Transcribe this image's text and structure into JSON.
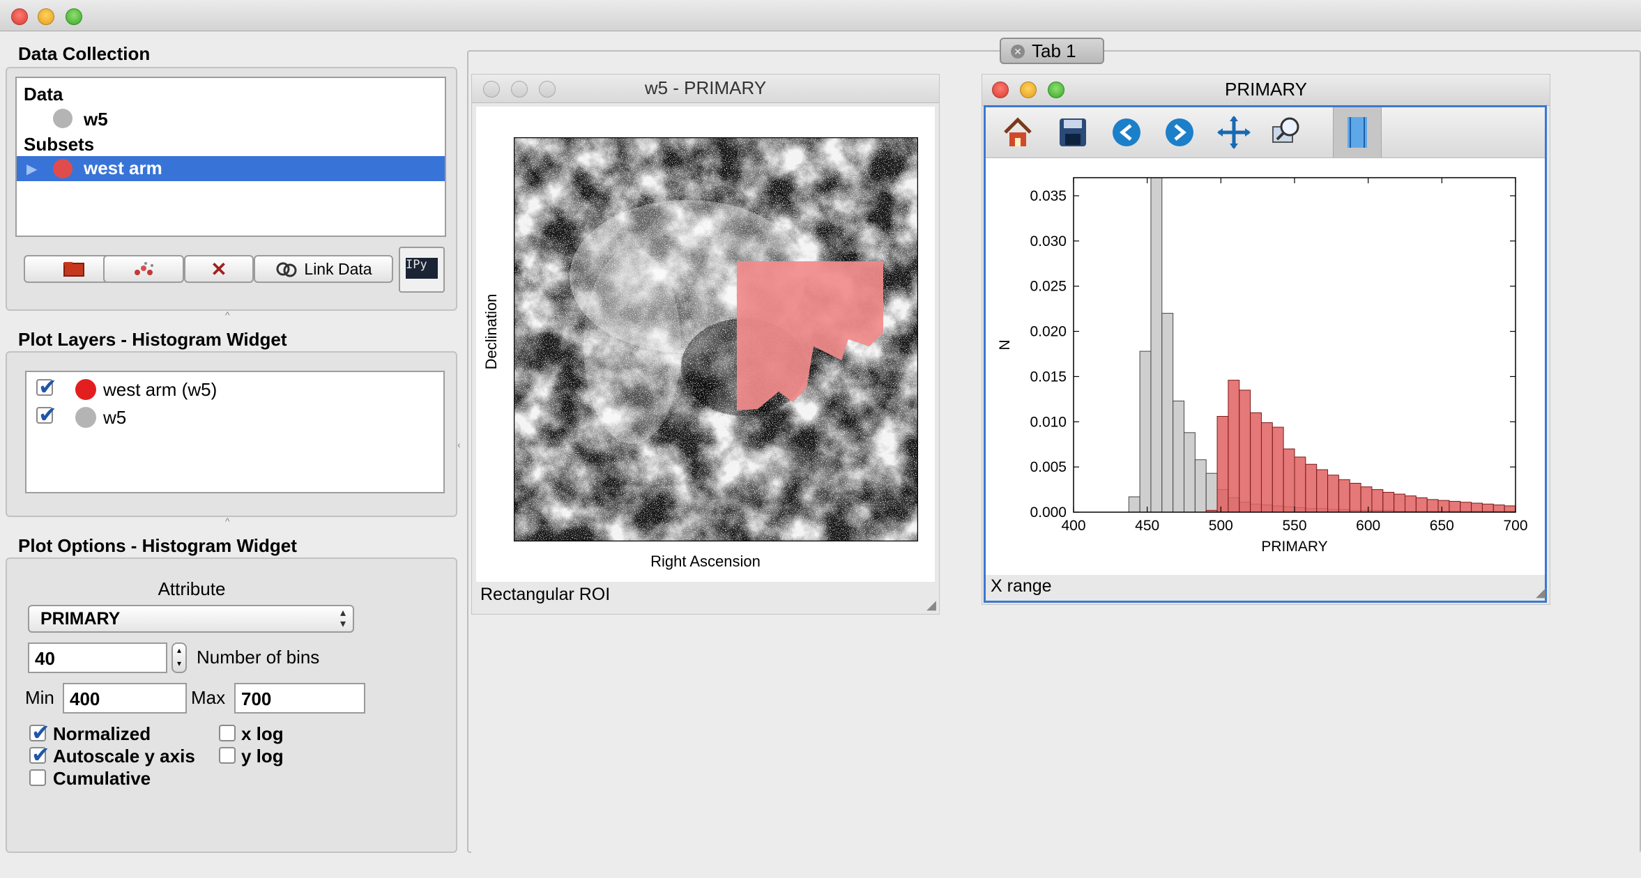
{
  "data_collection": {
    "title": "Data Collection",
    "data_header": "Data",
    "data_items": [
      {
        "label": "w5",
        "color": "#b4b4b4"
      }
    ],
    "subsets_header": "Subsets",
    "subset_items": [
      {
        "label": "west arm",
        "color": "#e04c4c",
        "selected": true
      }
    ],
    "buttons": {
      "link_data": "Link Data",
      "ipython": "IPy"
    }
  },
  "plot_layers": {
    "title": "Plot Layers - Histogram Widget",
    "layers": [
      {
        "label": "west arm (w5)",
        "color": "#e31e1e",
        "checked": true
      },
      {
        "label": "w5",
        "color": "#b4b4b4",
        "checked": true
      }
    ]
  },
  "plot_options": {
    "title": "Plot Options - Histogram Widget",
    "attribute_label": "Attribute",
    "attribute_value": "PRIMARY",
    "bins_value": "40",
    "bins_label": "Number of bins",
    "min_label": "Min",
    "min_value": "400",
    "max_label": "Max",
    "max_value": "700",
    "normalized": {
      "label": "Normalized",
      "checked": true
    },
    "autoscale": {
      "label": "Autoscale y axis",
      "checked": true
    },
    "cumulative": {
      "label": "Cumulative",
      "checked": false
    },
    "xlog": {
      "label": "x log",
      "checked": false
    },
    "ylog": {
      "label": "y log",
      "checked": false
    }
  },
  "tab": {
    "label": "Tab 1"
  },
  "image_window": {
    "title": "w5 - PRIMARY",
    "xlabel": "Right Ascension",
    "ylabel": "Declination",
    "status": "Rectangular ROI"
  },
  "hist_window": {
    "title": "PRIMARY",
    "status": "X range",
    "toolbar": [
      "home-icon",
      "save-icon",
      "back-icon",
      "forward-icon",
      "pan-icon",
      "zoom-icon",
      "range-select-icon"
    ]
  },
  "chart_data": {
    "type": "bar",
    "title": "",
    "xlabel": "PRIMARY",
    "ylabel": "N",
    "xlim": [
      400,
      700
    ],
    "ylim": [
      0,
      0.037
    ],
    "xticks": [
      "400",
      "450",
      "500",
      "550",
      "600",
      "650",
      "700"
    ],
    "yticks": [
      "0.000",
      "0.005",
      "0.010",
      "0.015",
      "0.020",
      "0.025",
      "0.030",
      "0.035"
    ],
    "bin_width": 7.5,
    "series": [
      {
        "color": "#cccccc",
        "edge": "#444444",
        "values": [
          {
            "x": 437.5,
            "y": 0.0017
          },
          {
            "x": 445,
            "y": 0.0178
          },
          {
            "x": 452.5,
            "y": 0.037
          },
          {
            "x": 460,
            "y": 0.022
          },
          {
            "x": 467.5,
            "y": 0.0123
          },
          {
            "x": 475,
            "y": 0.0088
          },
          {
            "x": 482.5,
            "y": 0.0058
          },
          {
            "x": 490,
            "y": 0.0043
          },
          {
            "x": 497.5,
            "y": 0.0025
          },
          {
            "x": 505,
            "y": 0.0016
          },
          {
            "x": 512.5,
            "y": 0.0011
          },
          {
            "x": 520,
            "y": 0.0009
          },
          {
            "x": 527.5,
            "y": 0.0008
          },
          {
            "x": 535,
            "y": 0.0007
          },
          {
            "x": 542.5,
            "y": 0.0006
          },
          {
            "x": 550,
            "y": 0.0005
          },
          {
            "x": 557.5,
            "y": 0.0004
          },
          {
            "x": 565,
            "y": 0.0004
          },
          {
            "x": 572.5,
            "y": 0.0003
          },
          {
            "x": 580,
            "y": 0.0003
          },
          {
            "x": 587.5,
            "y": 0.0002
          },
          {
            "x": 595,
            "y": 0.0002
          },
          {
            "x": 602.5,
            "y": 0.0002
          },
          {
            "x": 610,
            "y": 0.0002
          },
          {
            "x": 617.5,
            "y": 0.0001
          },
          {
            "x": 625,
            "y": 0.0001
          },
          {
            "x": 632.5,
            "y": 0.0001
          },
          {
            "x": 640,
            "y": 0.0001
          },
          {
            "x": 647.5,
            "y": 0.0001
          },
          {
            "x": 655,
            "y": 0.0001
          },
          {
            "x": 662.5,
            "y": 0.0001
          },
          {
            "x": 670,
            "y": 0.0001
          },
          {
            "x": 677.5,
            "y": 0.0001
          },
          {
            "x": 685,
            "y": 0.0001
          },
          {
            "x": 692.5,
            "y": 0.0001
          }
        ]
      },
      {
        "color": "#e06060",
        "edge": "#7a1a1a",
        "values": [
          {
            "x": 490,
            "y": 0.0002
          },
          {
            "x": 497.5,
            "y": 0.0106
          },
          {
            "x": 505,
            "y": 0.0146
          },
          {
            "x": 512.5,
            "y": 0.0135
          },
          {
            "x": 520,
            "y": 0.011
          },
          {
            "x": 527.5,
            "y": 0.0099
          },
          {
            "x": 535,
            "y": 0.0094
          },
          {
            "x": 542.5,
            "y": 0.007
          },
          {
            "x": 550,
            "y": 0.0061
          },
          {
            "x": 557.5,
            "y": 0.0053
          },
          {
            "x": 565,
            "y": 0.0047
          },
          {
            "x": 572.5,
            "y": 0.0041
          },
          {
            "x": 580,
            "y": 0.0036
          },
          {
            "x": 587.5,
            "y": 0.0032
          },
          {
            "x": 595,
            "y": 0.0028
          },
          {
            "x": 602.5,
            "y": 0.0025
          },
          {
            "x": 610,
            "y": 0.0022
          },
          {
            "x": 617.5,
            "y": 0.002
          },
          {
            "x": 625,
            "y": 0.0018
          },
          {
            "x": 632.5,
            "y": 0.0016
          },
          {
            "x": 640,
            "y": 0.0014
          },
          {
            "x": 647.5,
            "y": 0.0013
          },
          {
            "x": 655,
            "y": 0.0012
          },
          {
            "x": 662.5,
            "y": 0.0011
          },
          {
            "x": 670,
            "y": 0.001
          },
          {
            "x": 677.5,
            "y": 0.0009
          },
          {
            "x": 685,
            "y": 0.0008
          },
          {
            "x": 692.5,
            "y": 0.0007
          }
        ]
      }
    ]
  }
}
